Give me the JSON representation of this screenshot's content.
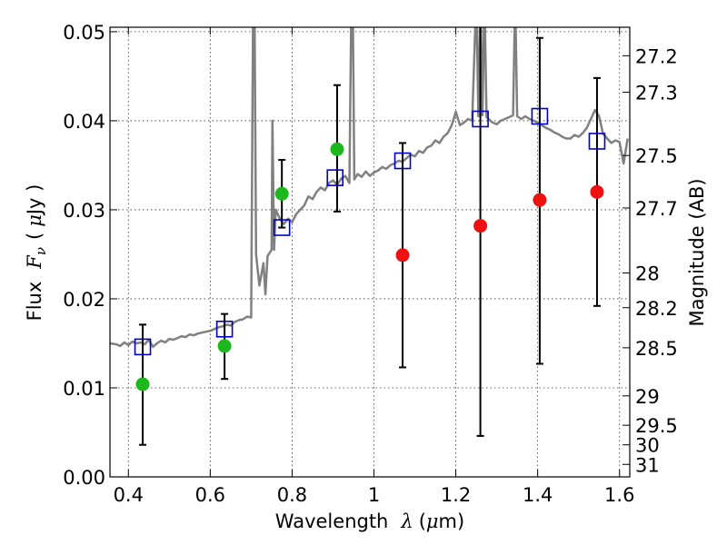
{
  "chart_data": {
    "type": "scatter",
    "xlabel_prefix": "Wavelength",
    "xlabel_symbol": "λ",
    "xlabel_unit_open": "(",
    "xlabel_unit_mu": "μ",
    "xlabel_unit_rest": "m)",
    "ylabel_prefix": "Flux",
    "ylabel_symbol": "F",
    "ylabel_sub": "ν",
    "ylabel_unit_open": "(",
    "ylabel_unit_mu": "μ",
    "ylabel_unit_rest": "Jy )",
    "y2label": "Magnitude (AB)",
    "xlim": [
      0.355,
      1.625
    ],
    "ylim": [
      0.0,
      0.0505
    ],
    "xticks": [
      {
        "value": 0.4,
        "label": "0.4"
      },
      {
        "value": 0.6,
        "label": "0.6"
      },
      {
        "value": 0.8,
        "label": "0.8"
      },
      {
        "value": 1.0,
        "label": "1"
      },
      {
        "value": 1.2,
        "label": "1.2"
      },
      {
        "value": 1.4,
        "label": "1.4"
      },
      {
        "value": 1.6,
        "label": "1.6"
      }
    ],
    "yticks": [
      {
        "value": 0.0,
        "label": "0.00"
      },
      {
        "value": 0.01,
        "label": "0.01"
      },
      {
        "value": 0.02,
        "label": "0.02"
      },
      {
        "value": 0.03,
        "label": "0.03"
      },
      {
        "value": 0.04,
        "label": "0.04"
      },
      {
        "value": 0.05,
        "label": "0.05"
      }
    ],
    "mag_ticks": [
      {
        "flux": 0.0473,
        "label": "27.2"
      },
      {
        "flux": 0.0432,
        "label": "27.3"
      },
      {
        "flux": 0.0361,
        "label": "27.5"
      },
      {
        "flux": 0.0302,
        "label": "27.7"
      },
      {
        "flux": 0.0229,
        "label": "28"
      },
      {
        "flux": 0.019,
        "label": "28.2"
      },
      {
        "flux": 0.0145,
        "label": "28.5"
      },
      {
        "flux": 0.0091,
        "label": "29"
      },
      {
        "flux": 0.0058,
        "label": "29.5"
      },
      {
        "flux": 0.0036,
        "label": "30"
      },
      {
        "flux": 0.0014,
        "label": "31"
      }
    ],
    "grid": true,
    "colors": {
      "model": "#808080",
      "squares": "#0000cc",
      "green": "#1db81d",
      "red": "#ee1111",
      "errorbar": "#000000"
    },
    "model_spectrum": {
      "x": [
        0.355,
        0.37,
        0.38,
        0.39,
        0.4,
        0.41,
        0.42,
        0.43,
        0.44,
        0.45,
        0.46,
        0.47,
        0.48,
        0.49,
        0.5,
        0.51,
        0.52,
        0.53,
        0.54,
        0.55,
        0.56,
        0.57,
        0.58,
        0.59,
        0.6,
        0.61,
        0.62,
        0.63,
        0.64,
        0.65,
        0.66,
        0.67,
        0.68,
        0.69,
        0.7,
        0.705,
        0.708,
        0.712,
        0.72,
        0.73,
        0.735,
        0.74,
        0.75,
        0.752,
        0.756,
        0.76,
        0.77,
        0.78,
        0.79,
        0.8,
        0.81,
        0.82,
        0.83,
        0.84,
        0.85,
        0.86,
        0.87,
        0.88,
        0.89,
        0.9,
        0.91,
        0.92,
        0.93,
        0.94,
        0.945,
        0.948,
        0.952,
        0.96,
        0.97,
        0.98,
        0.99,
        1.0,
        1.01,
        1.02,
        1.03,
        1.04,
        1.05,
        1.06,
        1.07,
        1.08,
        1.09,
        1.1,
        1.11,
        1.12,
        1.13,
        1.14,
        1.15,
        1.16,
        1.17,
        1.18,
        1.19,
        1.2,
        1.21,
        1.22,
        1.23,
        1.24,
        1.25,
        1.255,
        1.26,
        1.265,
        1.27,
        1.275,
        1.28,
        1.29,
        1.3,
        1.31,
        1.32,
        1.33,
        1.34,
        1.345,
        1.35,
        1.36,
        1.37,
        1.38,
        1.39,
        1.4,
        1.41,
        1.42,
        1.43,
        1.44,
        1.45,
        1.46,
        1.47,
        1.48,
        1.49,
        1.5,
        1.51,
        1.52,
        1.53,
        1.54,
        1.55,
        1.56,
        1.57,
        1.58,
        1.59,
        1.6,
        1.61,
        1.62
      ],
      "y": [
        0.015,
        0.0149,
        0.0147,
        0.0151,
        0.0148,
        0.0152,
        0.015,
        0.0151,
        0.0149,
        0.0154,
        0.0146,
        0.015,
        0.0153,
        0.0151,
        0.0155,
        0.0154,
        0.0156,
        0.0158,
        0.0157,
        0.016,
        0.0159,
        0.0161,
        0.0162,
        0.0163,
        0.0164,
        0.0166,
        0.0168,
        0.0169,
        0.0171,
        0.017,
        0.0174,
        0.0176,
        0.0177,
        0.018,
        0.0179,
        0.054,
        0.054,
        0.025,
        0.0215,
        0.024,
        0.0205,
        0.0248,
        0.0255,
        0.04,
        0.0255,
        0.03,
        0.029,
        0.0284,
        0.029,
        0.0286,
        0.0295,
        0.03,
        0.0305,
        0.0315,
        0.0312,
        0.032,
        0.0325,
        0.0322,
        0.033,
        0.0333,
        0.0328,
        0.0335,
        0.0338,
        0.033,
        0.054,
        0.054,
        0.0334,
        0.034,
        0.0337,
        0.0343,
        0.0338,
        0.0342,
        0.0344,
        0.0348,
        0.0346,
        0.035,
        0.0352,
        0.0355,
        0.0354,
        0.0358,
        0.0362,
        0.036,
        0.0366,
        0.0364,
        0.037,
        0.0372,
        0.0378,
        0.0375,
        0.0382,
        0.0386,
        0.0395,
        0.041,
        0.0395,
        0.0398,
        0.0402,
        0.04,
        0.054,
        0.0405,
        0.054,
        0.0406,
        0.054,
        0.0404,
        0.0402,
        0.0398,
        0.0396,
        0.04,
        0.0402,
        0.0404,
        0.0406,
        0.054,
        0.0405,
        0.0402,
        0.0405,
        0.0402,
        0.04,
        0.0398,
        0.0395,
        0.0392,
        0.039,
        0.0387,
        0.0385,
        0.0382,
        0.038,
        0.038,
        0.0384,
        0.0382,
        0.0386,
        0.0392,
        0.0402,
        0.0412,
        0.0405,
        0.0385,
        0.038,
        0.0375,
        0.0378,
        0.0376,
        0.0352,
        0.038
      ]
    },
    "series": [
      {
        "marker": "open-square",
        "x": [
          0.435,
          0.635,
          0.775,
          0.905,
          1.07,
          1.26,
          1.405,
          1.545
        ],
        "y": [
          0.0146,
          0.0166,
          0.028,
          0.0336,
          0.0355,
          0.0402,
          0.0405,
          0.0377
        ]
      },
      {
        "marker": "filled-circle-green",
        "x": [
          0.435,
          0.635,
          0.775,
          0.91
        ],
        "y": [
          0.0104,
          0.0147,
          0.0318,
          0.0368
        ]
      },
      {
        "marker": "filled-circle-red",
        "x": [
          1.07,
          1.26,
          1.405,
          1.545
        ],
        "y": [
          0.0249,
          0.0282,
          0.0311,
          0.032
        ]
      }
    ],
    "errorbars": [
      {
        "x": 0.435,
        "y": 0.0104,
        "ylow": 0.0036,
        "yhigh": 0.0171
      },
      {
        "x": 0.635,
        "y": 0.0147,
        "ylow": 0.011,
        "yhigh": 0.0183
      },
      {
        "x": 0.775,
        "y": 0.0318,
        "ylow": 0.028,
        "yhigh": 0.0356
      },
      {
        "x": 0.91,
        "y": 0.0368,
        "ylow": 0.0298,
        "yhigh": 0.044
      },
      {
        "x": 1.07,
        "y": 0.0249,
        "ylow": 0.0123,
        "yhigh": 0.0375
      },
      {
        "x": 1.26,
        "y": 0.0282,
        "ylow": 0.0046,
        "yhigh": 0.054
      },
      {
        "x": 1.405,
        "y": 0.0311,
        "ylow": 0.0127,
        "yhigh": 0.0493
      },
      {
        "x": 1.545,
        "y": 0.032,
        "ylow": 0.0192,
        "yhigh": 0.0448
      }
    ]
  }
}
